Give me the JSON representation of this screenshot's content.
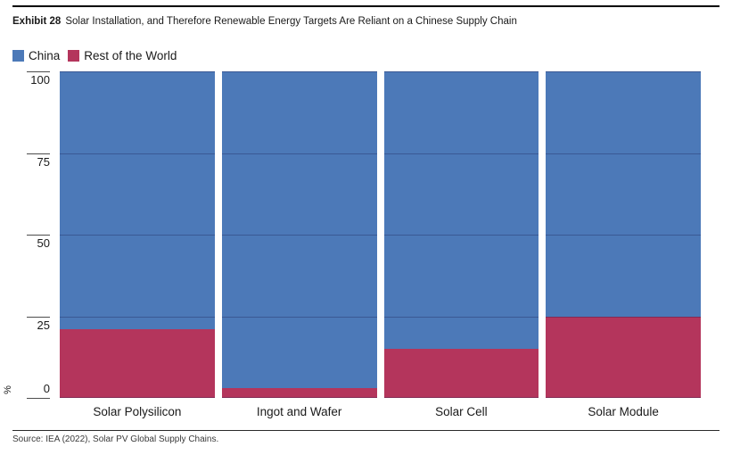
{
  "header": {
    "exhibit_label": "Exhibit 28",
    "title": "Solar Installation, and Therefore Renewable Energy Targets Are Reliant on a Chinese Supply Chain"
  },
  "chart_data": {
    "type": "bar",
    "stacked": true,
    "unit": "%",
    "categories": [
      "Solar Polysilicon",
      "Ingot and Wafer",
      "Solar Cell",
      "Solar Module"
    ],
    "series": [
      {
        "name": "China",
        "color": "#4C79B8",
        "values": [
          79,
          97,
          85,
          75
        ]
      },
      {
        "name": "Rest of the World",
        "color": "#B4355C",
        "values": [
          21,
          3,
          15,
          25
        ]
      }
    ],
    "title": "",
    "xlabel": "",
    "ylabel": "%",
    "ylim": [
      0,
      100
    ],
    "yticks": [
      0,
      25,
      50,
      75,
      100
    ],
    "grid": true,
    "legend_position": "top-left"
  },
  "footer": {
    "source": "Source: IEA (2022), Solar PV Global Supply Chains."
  }
}
